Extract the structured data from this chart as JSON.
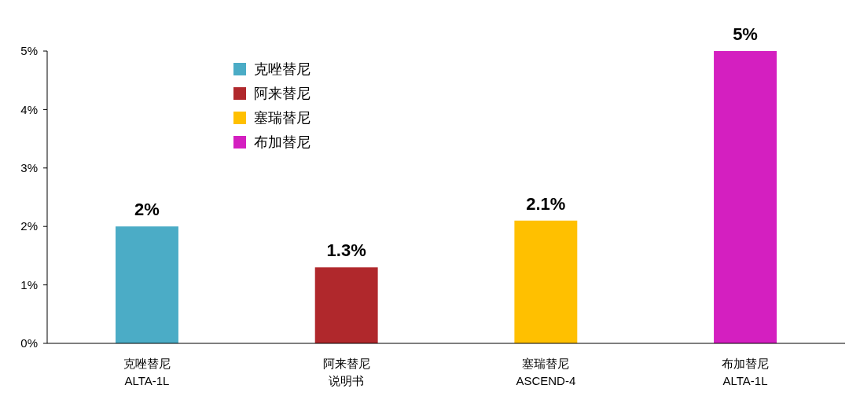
{
  "chart_data": {
    "type": "bar",
    "categories": [
      "克唑替尼\nALTA-1L",
      "阿来替尼说明书",
      "塞瑞替尼\nASCEND-4",
      "布加替尼\nALTA-1L"
    ],
    "series": [
      {
        "name": "克唑替尼",
        "color": "#4bacc6",
        "values": [
          2,
          null,
          null,
          null
        ],
        "value_labels": [
          "2%",
          null,
          null,
          null
        ]
      },
      {
        "name": "阿来替尼",
        "color": "#b0282c",
        "values": [
          null,
          1.3,
          null,
          null
        ],
        "value_labels": [
          null,
          "1.3%",
          null,
          null
        ]
      },
      {
        "name": "塞瑞替尼",
        "color": "#ffc000",
        "values": [
          null,
          null,
          2.1,
          null
        ],
        "value_labels": [
          null,
          null,
          "2.1%",
          null
        ]
      },
      {
        "name": "布加替尼",
        "color": "#d41fc0",
        "values": [
          null,
          null,
          null,
          5
        ],
        "value_labels": [
          null,
          null,
          null,
          "5%"
        ]
      }
    ],
    "ylim": [
      0,
      5
    ],
    "yticks": [
      {
        "value": 0,
        "label": "0%"
      },
      {
        "value": 1,
        "label": "1%"
      },
      {
        "value": 2,
        "label": "2%"
      },
      {
        "value": 3,
        "label": "3%"
      },
      {
        "value": 4,
        "label": "4%"
      },
      {
        "value": 5,
        "label": "5%"
      }
    ],
    "grid": false,
    "legend": "top left"
  }
}
